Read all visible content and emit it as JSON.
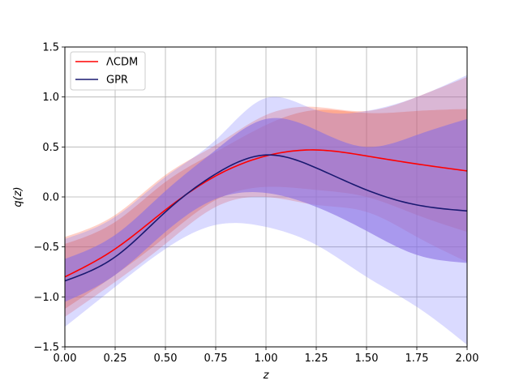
{
  "chart_data": {
    "type": "line",
    "xlabel": "z",
    "ylabel": "q(z)",
    "xlim": [
      0,
      2
    ],
    "ylim": [
      -1.5,
      1.5
    ],
    "xticks": [
      0,
      0.25,
      0.5,
      0.75,
      1.0,
      1.25,
      1.5,
      1.75,
      2.0
    ],
    "xtick_labels": [
      "0.00",
      "0.25",
      "0.50",
      "0.75",
      "1.00",
      "1.25",
      "1.50",
      "1.75",
      "2.00"
    ],
    "yticks": [
      -1.5,
      -1.0,
      -0.5,
      0.0,
      0.5,
      1.0,
      1.5
    ],
    "ytick_labels": [
      "−1.5",
      "−1.0",
      "−0.5",
      "0.0",
      "0.5",
      "1.0",
      "1.5"
    ],
    "grid": true,
    "legend_position": "top-left",
    "x": [
      0,
      0.25,
      0.5,
      0.75,
      1.0,
      1.25,
      1.5,
      1.75,
      2.0
    ],
    "series": [
      {
        "name": "ΛCDM",
        "color": "#ff0000",
        "values": [
          -0.8,
          -0.52,
          -0.13,
          0.21,
          0.41,
          0.47,
          0.41,
          0.33,
          0.26
        ],
        "bands": [
          {
            "lower": [
              -1.12,
              -0.78,
              -0.4,
              -0.03,
              0.1,
              0.07,
              0.0,
              -0.18,
              -0.35
            ],
            "upper": [
              -0.47,
              -0.25,
              0.15,
              0.45,
              0.72,
              0.87,
              0.84,
              0.86,
              0.88
            ],
            "color": "#ff4500",
            "opacity": 0.3
          },
          {
            "lower": [
              -1.2,
              -0.85,
              -0.47,
              -0.1,
              0.0,
              -0.08,
              -0.15,
              -0.4,
              -0.65
            ],
            "upper": [
              -0.4,
              -0.18,
              0.22,
              0.52,
              0.82,
              0.9,
              0.86,
              1.0,
              1.2
            ],
            "color": "#ff6347",
            "opacity": 0.3
          }
        ]
      },
      {
        "name": "GPR",
        "color": "#191970",
        "values": [
          -0.84,
          -0.6,
          -0.15,
          0.23,
          0.42,
          0.29,
          0.07,
          -0.08,
          -0.14
        ],
        "bands": [
          {
            "lower": [
              -1.05,
              -0.78,
              -0.35,
              -0.02,
              0.04,
              -0.1,
              -0.34,
              -0.58,
              -0.66
            ],
            "upper": [
              -0.62,
              -0.38,
              0.06,
              0.47,
              0.78,
              0.67,
              0.5,
              0.62,
              0.78
            ],
            "color": "#9370db",
            "opacity": 0.6
          },
          {
            "lower": [
              -1.3,
              -0.9,
              -0.52,
              -0.28,
              -0.3,
              -0.48,
              -0.8,
              -1.1,
              -1.48
            ],
            "upper": [
              -0.42,
              -0.2,
              0.2,
              0.57,
              0.99,
              0.87,
              0.86,
              1.0,
              1.22
            ],
            "color": "#6b6bff",
            "opacity": 0.25
          }
        ]
      }
    ]
  }
}
